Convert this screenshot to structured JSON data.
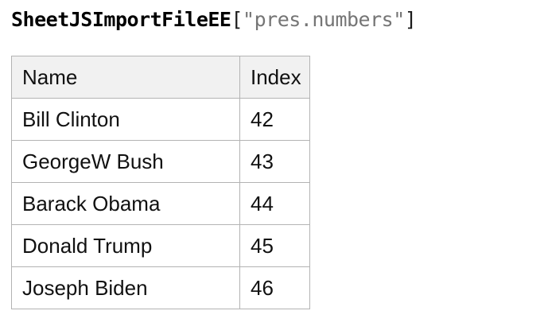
{
  "page": {
    "background": "#ffffff"
  },
  "title": {
    "object_name": "SheetJSImportFileEE",
    "bracket_open": "[",
    "key_string": "\"pres.numbers\"",
    "bracket_close": "]",
    "name_color": "#000000",
    "string_color": "#757575"
  },
  "table": {
    "header_bg": "#f1f1f1",
    "border_color": "#b3b3b3",
    "columns": [
      {
        "label": "Name"
      },
      {
        "label": "Index"
      }
    ],
    "rows": [
      {
        "name": "Bill Clinton",
        "index": "42"
      },
      {
        "name": "GeorgeW Bush",
        "index": "43"
      },
      {
        "name": "Barack Obama",
        "index": "44"
      },
      {
        "name": "Donald Trump",
        "index": "45"
      },
      {
        "name": "Joseph Biden",
        "index": "46"
      }
    ]
  }
}
